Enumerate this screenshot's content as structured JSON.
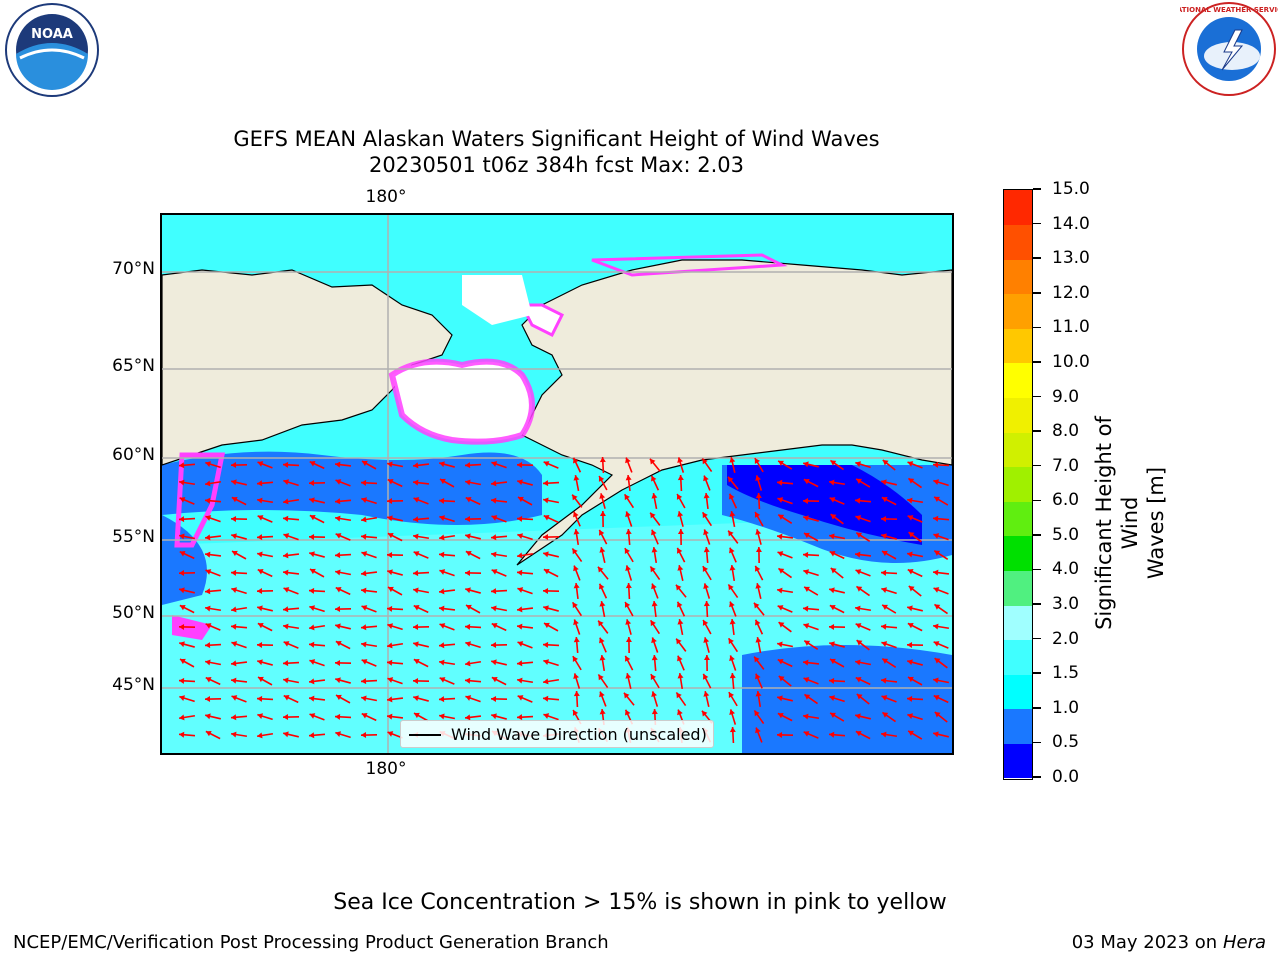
{
  "title_line1": "GEFS MEAN Alaskan Waters Significant Height of Wind Waves",
  "title_line2": "20230501 t06z 384h fcst   Max: 2.03",
  "lat_labels": [
    "70°N",
    "65°N",
    "60°N",
    "55°N",
    "50°N",
    "45°N"
  ],
  "lon_label_top": "180°",
  "lon_label_bottom": "180°",
  "legend_label": "Wind Wave Direction (unscaled)",
  "colorbar": {
    "title_line1": "Significant Height of Wind",
    "title_line2": "Waves [m]",
    "ticks": [
      "0.0",
      "0.5",
      "1.0",
      "1.5",
      "2.0",
      "3.0",
      "4.0",
      "5.0",
      "6.0",
      "7.0",
      "8.0",
      "9.0",
      "10.0",
      "11.0",
      "12.0",
      "13.0",
      "14.0",
      "15.0"
    ],
    "colors": [
      "#0000ff",
      "#1a78ff",
      "#00ffff",
      "#40ffff",
      "#a0ffff",
      "#50f080",
      "#00e000",
      "#60ee10",
      "#a0f000",
      "#d0f000",
      "#f0f000",
      "#ffff00",
      "#ffc800",
      "#ffa000",
      "#ff8000",
      "#ff5000",
      "#ff2800",
      "#ff0000"
    ]
  },
  "note": "Sea Ice Concentration > 15% is shown in pink to yellow",
  "footer_left": "NCEP/EMC/Verification Post Processing Product Generation Branch",
  "footer_right_date": "03 May 2023 on",
  "footer_right_host": "Hera",
  "logo_left_text": "NOAA",
  "logo_right_text": "NATIONAL WEATHER SERVICE",
  "map_colors": {
    "land": "#efecdc",
    "ice": "#ffffff",
    "ice_edge": "#ff40ff",
    "deep_blue": "#1a78ff",
    "cyan": "#00ffff",
    "light_cyan": "#40ffff",
    "blue": "#0000ff",
    "arrow": "#ff0000",
    "grid": "#b0b0b0"
  }
}
